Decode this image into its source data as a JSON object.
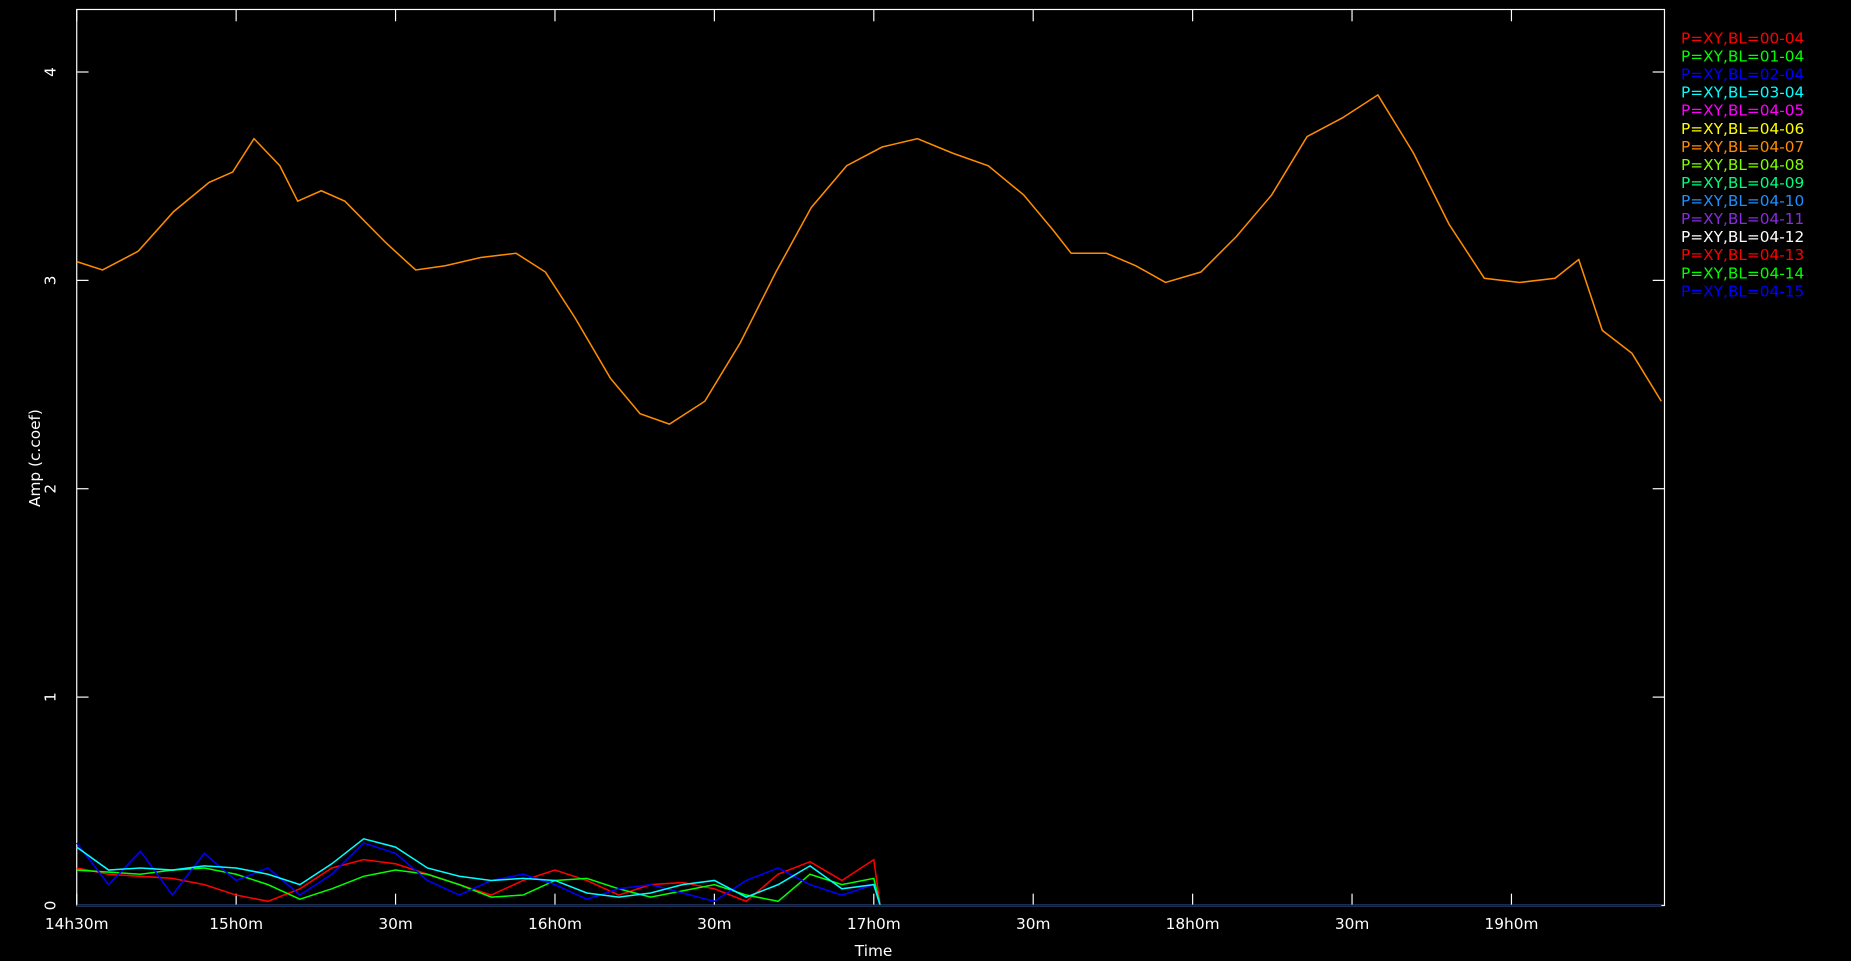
{
  "chart_data": {
    "type": "line",
    "x_label": "Time",
    "y_label": "Amp (c.coef)",
    "xlim": [
      14.5,
      19.48
    ],
    "ylim": [
      0,
      4.3
    ],
    "xticks": [
      {
        "value": 14.5,
        "label": "14h30m"
      },
      {
        "value": 15,
        "label": "15h0m"
      },
      {
        "value": 15.5,
        "label": "30m"
      },
      {
        "value": 16,
        "label": "16h0m"
      },
      {
        "value": 16.5,
        "label": "30m"
      },
      {
        "value": 17,
        "label": "17h0m"
      },
      {
        "value": 17.5,
        "label": "30m"
      },
      {
        "value": 18,
        "label": "18h0m"
      },
      {
        "value": 18.5,
        "label": "30m"
      },
      {
        "value": 19,
        "label": "19h0m"
      }
    ],
    "yticks": [
      0,
      1,
      2,
      3,
      4
    ],
    "legend": "right",
    "series": [
      {
        "name": "P=XY,BL=00-04",
        "color": "#ff0000",
        "x": [
          14.5,
          14.6,
          14.7,
          14.8,
          14.9,
          15.0,
          15.1,
          15.2,
          15.3,
          15.4,
          15.5,
          15.6,
          15.7,
          15.8,
          15.9,
          16.0,
          16.1,
          16.2,
          16.3,
          16.4,
          16.5,
          16.6,
          16.7,
          16.8,
          16.9,
          17.0,
          17.02,
          19.47
        ],
        "values": [
          0.18,
          0.15,
          0.14,
          0.13,
          0.1,
          0.05,
          0.02,
          0.08,
          0.18,
          0.22,
          0.2,
          0.15,
          0.1,
          0.05,
          0.12,
          0.17,
          0.12,
          0.05,
          0.1,
          0.11,
          0.08,
          0.02,
          0.15,
          0.21,
          0.12,
          0.22,
          0,
          0
        ]
      },
      {
        "name": "P=XY,BL=01-04",
        "color": "#00ff00",
        "x": [
          14.5,
          14.6,
          14.7,
          14.8,
          14.9,
          15.0,
          15.1,
          15.2,
          15.3,
          15.4,
          15.5,
          15.6,
          15.7,
          15.8,
          15.9,
          16.0,
          16.1,
          16.2,
          16.3,
          16.4,
          16.5,
          16.6,
          16.7,
          16.8,
          16.9,
          17.0,
          17.02,
          19.47
        ],
        "values": [
          0.17,
          0.16,
          0.15,
          0.17,
          0.18,
          0.15,
          0.1,
          0.03,
          0.08,
          0.14,
          0.17,
          0.15,
          0.1,
          0.04,
          0.05,
          0.12,
          0.13,
          0.08,
          0.04,
          0.07,
          0.1,
          0.05,
          0.02,
          0.15,
          0.1,
          0.13,
          0,
          0
        ]
      },
      {
        "name": "P=XY,BL=02-04",
        "color": "#0000ff",
        "x": [
          14.5,
          14.6,
          14.7,
          14.8,
          14.9,
          15.0,
          15.1,
          15.2,
          15.3,
          15.4,
          15.5,
          15.6,
          15.7,
          15.8,
          15.9,
          16.0,
          16.1,
          16.2,
          16.3,
          16.4,
          16.5,
          16.6,
          16.7,
          16.8,
          16.9,
          17.0,
          17.02,
          19.47
        ],
        "values": [
          0.3,
          0.1,
          0.26,
          0.05,
          0.25,
          0.12,
          0.18,
          0.05,
          0.15,
          0.3,
          0.25,
          0.12,
          0.05,
          0.12,
          0.15,
          0.1,
          0.03,
          0.08,
          0.1,
          0.06,
          0.02,
          0.12,
          0.18,
          0.1,
          0.05,
          0.1,
          0,
          0
        ]
      },
      {
        "name": "P=XY,BL=03-04",
        "color": "#00ffff",
        "x": [
          14.5,
          14.6,
          14.7,
          14.8,
          14.9,
          15.0,
          15.1,
          15.2,
          15.3,
          15.4,
          15.5,
          15.6,
          15.7,
          15.8,
          15.9,
          16.0,
          16.1,
          16.2,
          16.3,
          16.4,
          16.5,
          16.6,
          16.7,
          16.8,
          16.9,
          17.0,
          17.02,
          19.47
        ],
        "values": [
          0.28,
          0.17,
          0.18,
          0.17,
          0.19,
          0.18,
          0.15,
          0.1,
          0.2,
          0.32,
          0.28,
          0.18,
          0.14,
          0.12,
          0.13,
          0.12,
          0.06,
          0.04,
          0.06,
          0.1,
          0.12,
          0.04,
          0.1,
          0.19,
          0.08,
          0.1,
          0,
          0
        ]
      },
      {
        "name": "P=XY,BL=04-05",
        "color": "#ff00ff",
        "x": [
          14.5,
          19.47
        ],
        "values": [
          0,
          0
        ]
      },
      {
        "name": "P=XY,BL=04-06",
        "color": "#ffff00",
        "x": [
          14.5,
          19.47
        ],
        "values": [
          0,
          0
        ]
      },
      {
        "name": "P=XY,BL=04-07",
        "color": "#ff8c00",
        "x": [
          14.5,
          14.581,
          14.693,
          14.804,
          14.915,
          14.989,
          15.056,
          15.137,
          15.193,
          15.267,
          15.341,
          15.47,
          15.563,
          15.656,
          15.767,
          15.878,
          15.97,
          16.063,
          16.174,
          16.267,
          16.359,
          16.47,
          16.581,
          16.693,
          16.804,
          16.915,
          17.026,
          17.137,
          17.248,
          17.359,
          17.47,
          17.563,
          17.619,
          17.73,
          17.822,
          17.915,
          18.026,
          18.137,
          18.248,
          18.359,
          18.47,
          18.581,
          18.693,
          18.804,
          18.915,
          19.026,
          19.137,
          19.211,
          19.285,
          19.378,
          19.47
        ],
        "values": [
          3.09,
          3.05,
          3.14,
          3.33,
          3.47,
          3.52,
          3.68,
          3.55,
          3.38,
          3.43,
          3.38,
          3.18,
          3.05,
          3.07,
          3.11,
          3.13,
          3.04,
          2.82,
          2.53,
          2.36,
          2.31,
          2.42,
          2.7,
          3.04,
          3.35,
          3.55,
          3.64,
          3.68,
          3.61,
          3.55,
          3.41,
          3.24,
          3.13,
          3.13,
          3.07,
          2.99,
          3.04,
          3.21,
          3.41,
          3.69,
          3.78,
          3.89,
          3.61,
          3.27,
          3.01,
          2.99,
          3.01,
          3.1,
          2.76,
          2.65,
          2.42
        ]
      },
      {
        "name": "P=XY,BL=04-08",
        "color": "#7fff00",
        "x": [
          14.5,
          19.47
        ],
        "values": [
          0,
          0
        ]
      },
      {
        "name": "P=XY,BL=04-09",
        "color": "#00ff7f",
        "x": [
          14.5,
          19.47
        ],
        "values": [
          0,
          0
        ]
      },
      {
        "name": "P=XY,BL=04-10",
        "color": "#1e90ff",
        "x": [
          14.5,
          19.47
        ],
        "values": [
          0,
          0
        ]
      },
      {
        "name": "P=XY,BL=04-11",
        "color": "#8a2be2",
        "x": [
          14.5,
          19.47
        ],
        "values": [
          0,
          0
        ]
      },
      {
        "name": "P=XY,BL=04-12",
        "color": "#ffffff",
        "x": [
          14.5,
          19.47
        ],
        "values": [
          0,
          0
        ]
      },
      {
        "name": "P=XY,BL=04-13",
        "color": "#ff0000",
        "x": [
          14.5,
          19.47
        ],
        "values": [
          0,
          0
        ]
      },
      {
        "name": "P=XY,BL=04-14",
        "color": "#00ff00",
        "x": [
          14.5,
          19.47
        ],
        "values": [
          0,
          0
        ]
      },
      {
        "name": "P=XY,BL=04-15",
        "color": "#0000ff",
        "x": [
          14.5,
          19.47
        ],
        "values": [
          0,
          0
        ]
      }
    ]
  }
}
